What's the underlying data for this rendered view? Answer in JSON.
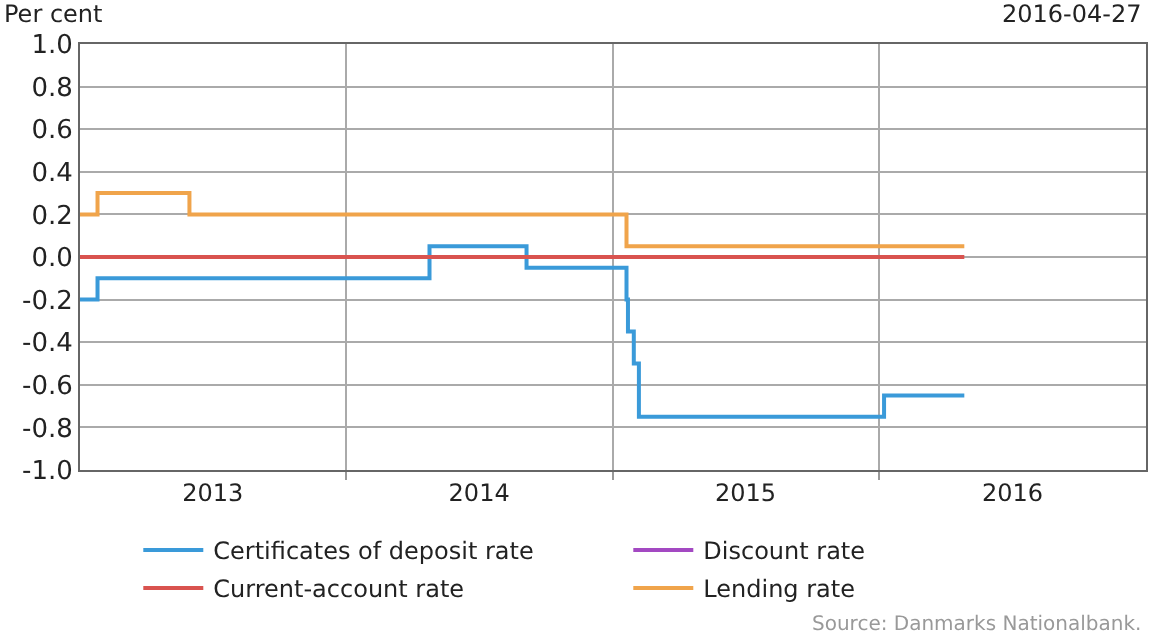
{
  "chart_data": {
    "type": "step",
    "ylabel": "Per cent",
    "subtitle": "2016-04-27",
    "annotations": [
      "Source: Danmarks Nationalbank."
    ],
    "series": [
      {
        "name": "Certificates of deposit rate",
        "color": "#3a9ad9",
        "x": [
          "2013-01-01",
          "2013-01-25",
          "2014-04-25",
          "2014-09-05",
          "2015-01-20",
          "2015-01-22",
          "2015-01-30",
          "2015-02-06",
          "2016-01-08",
          "2016-04-27"
        ],
        "values": [
          -0.2,
          -0.1,
          0.05,
          -0.05,
          -0.2,
          -0.35,
          -0.5,
          -0.75,
          -0.65,
          -0.65
        ]
      },
      {
        "name": "Discount rate",
        "color": "#a349c2"
      },
      {
        "name": "Current-account rate",
        "color": "#d9534f",
        "x": [
          "2013-01-01",
          "2016-04-27"
        ],
        "values": [
          0,
          0
        ]
      },
      {
        "name": "Lending rate",
        "color": "#f0a44b",
        "x": [
          "2013-01-01",
          "2013-01-25",
          "2013-05-31",
          "2015-01-20",
          "2016-04-27"
        ],
        "values": [
          0.2,
          0.3,
          0.2,
          0.05,
          0.05
        ]
      }
    ],
    "xlim": [
      "2013-01-01",
      "2017-01-01"
    ],
    "xticks": [
      {
        "value": "2013-07-02",
        "label": "2013"
      },
      {
        "value": "2014-01-01",
        "label": null
      },
      {
        "value": "2014-07-02",
        "label": "2014"
      },
      {
        "value": "2015-01-01",
        "label": null
      },
      {
        "value": "2015-07-02",
        "label": "2015"
      },
      {
        "value": "2016-01-01",
        "label": null
      },
      {
        "value": "2016-07-02",
        "label": "2016"
      }
    ],
    "ylim": [
      -1,
      1
    ],
    "yticks": [
      {
        "value": -1,
        "label": "-1.0"
      },
      {
        "value": -0.8,
        "label": "-0.8"
      },
      {
        "value": -0.6,
        "label": "-0.6"
      },
      {
        "value": -0.4,
        "label": "-0.4"
      },
      {
        "value": -0.2,
        "label": "-0.2"
      },
      {
        "value": 0,
        "label": "0.0"
      },
      {
        "value": 0.2,
        "label": "0.2"
      },
      {
        "value": 0.4,
        "label": "0.4"
      },
      {
        "value": 0.6,
        "label": "0.6"
      },
      {
        "value": 0.8,
        "label": "0.8"
      },
      {
        "value": 1,
        "label": "1.0"
      }
    ],
    "grid": true,
    "legend": "bottom",
    "line_style": "solid",
    "marker": "none"
  }
}
